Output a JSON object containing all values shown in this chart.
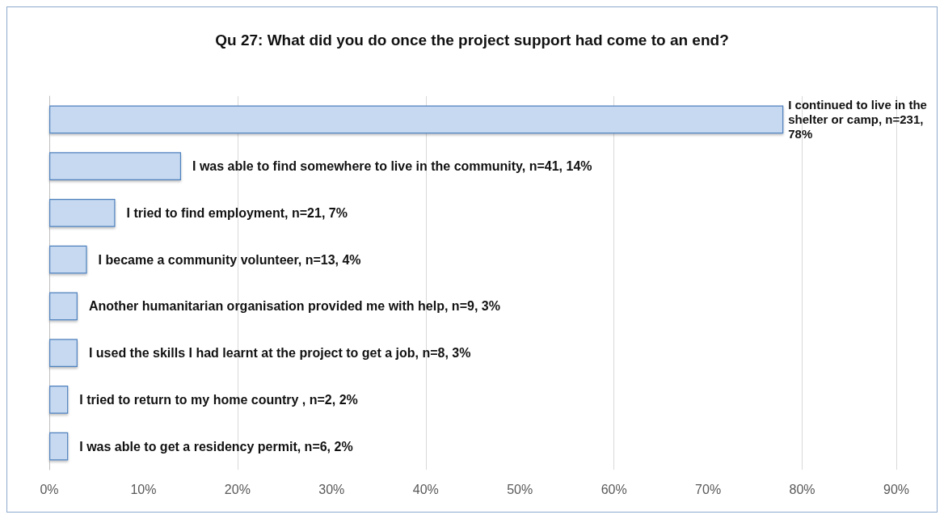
{
  "chart_data": {
    "type": "bar",
    "orientation": "horizontal",
    "title": "Qu 27: What did you do once the project support had come to an end?",
    "categories": [
      null,
      null,
      null,
      null,
      null,
      null,
      null,
      null
    ],
    "values": [
      78,
      14,
      7,
      4,
      3,
      3,
      2,
      2
    ],
    "value_labels": [
      "I continued to live in the shelter or camp, n=231, 78%",
      "I was able to find somewhere to live in the community, n=41, 14%",
      "I tried to find employment, n=21, 7%",
      "I became a community volunteer, n=13, 4%",
      "Another humanitarian organisation provided me with help, n=9, 3%",
      "I used the skills I had learnt at the project to get a job, n=8, 3%",
      "I tried to return to my home country , n=2, 2%",
      "I was able to get a residency permit, n=6, 2%"
    ],
    "color": "#c6d9f1",
    "xlim": [
      0,
      90
    ],
    "xticks": [
      {
        "value": 0,
        "label": "0%"
      },
      {
        "value": 10,
        "label": "10%"
      },
      {
        "value": 20,
        "label": "20%"
      },
      {
        "value": 30,
        "label": "30%"
      },
      {
        "value": 40,
        "label": "40%"
      },
      {
        "value": 50,
        "label": "50%"
      },
      {
        "value": 60,
        "label": "60%"
      },
      {
        "value": 70,
        "label": "70%"
      },
      {
        "value": 80,
        "label": "80%"
      },
      {
        "value": 90,
        "label": "90%"
      }
    ],
    "grid": "x"
  }
}
